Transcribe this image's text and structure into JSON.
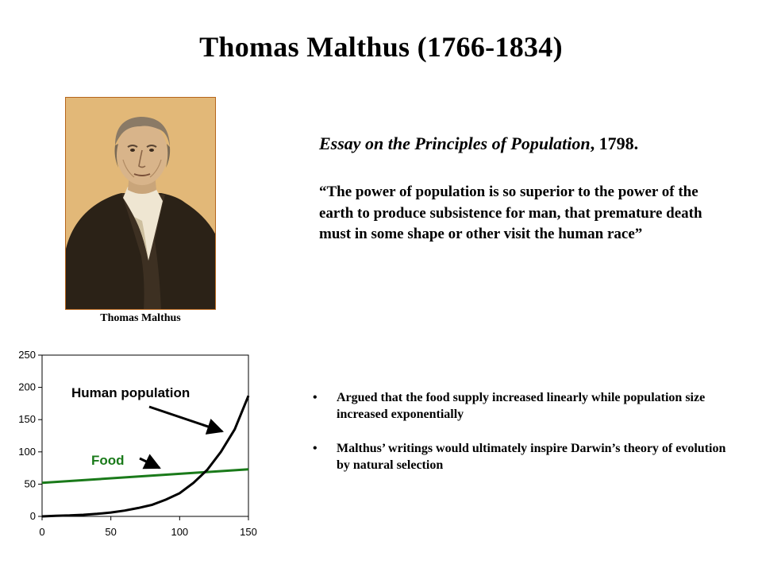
{
  "slide": {
    "title": "Thomas Malthus (1766-1834)",
    "portrait_caption": "Thomas Malthus",
    "essay_title": "Essay on the Principles of Population",
    "essay_year": ", 1798.",
    "quote": "“The power of population is so superior to the power of the earth to produce subsistence for man, that premature death must in some shape or other visit the human race”",
    "bullets": [
      "Argued that the food supply increased linearly while population size increased exponentially",
      "Malthus’ writings would ultimately inspire Darwin’s theory of evolution by natural selection"
    ],
    "bullet_glyph": "•",
    "colors": {
      "food": "#1a7a1a",
      "population": "#000000",
      "portrait_border": "#b5651d",
      "portrait_bg": "#e2b878"
    }
  },
  "chart_data": {
    "type": "line",
    "xlim": [
      0,
      150
    ],
    "ylim": [
      0,
      250
    ],
    "x_ticks": [
      0,
      50,
      100,
      150
    ],
    "y_ticks": [
      0,
      50,
      100,
      150,
      200,
      250
    ],
    "series": [
      {
        "name": "Human population",
        "color": "#000000",
        "x": [
          0,
          10,
          20,
          30,
          40,
          50,
          60,
          70,
          80,
          90,
          100,
          110,
          120,
          130,
          140,
          150
        ],
        "values": [
          0,
          1,
          1.5,
          2.5,
          4,
          6,
          9,
          13,
          18,
          26,
          36,
          52,
          72,
          100,
          135,
          187
        ]
      },
      {
        "name": "Food",
        "color": "#1a7a1a",
        "x": [
          0,
          150
        ],
        "values": [
          52,
          73
        ]
      }
    ],
    "annotations": [
      {
        "text": "Human population",
        "color": "#000000"
      },
      {
        "text": "Food",
        "color": "#1a7a1a"
      }
    ]
  }
}
